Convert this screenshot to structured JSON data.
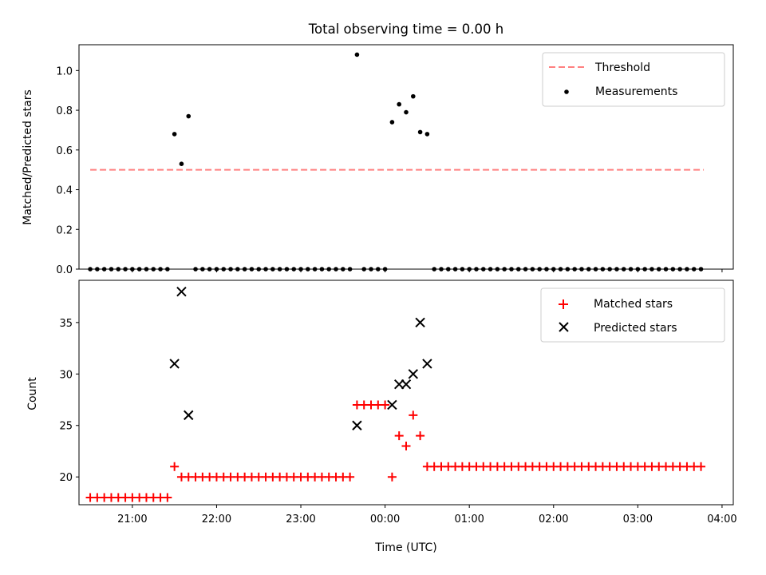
{
  "chart_data": [
    {
      "type": "scatter",
      "title": "Total observing time = 0.00 h",
      "xlabel": "",
      "ylabel": "Matched/Predicted stars",
      "xrange": [
        "20:22",
        "04:08"
      ],
      "ylim": [
        0,
        1.13
      ],
      "yticks": [
        0.0,
        0.2,
        0.4,
        0.6,
        0.8,
        1.0
      ],
      "xticks": [
        "21:00",
        "22:00",
        "23:00",
        "00:00",
        "01:00",
        "02:00",
        "03:00",
        "04:00"
      ],
      "grid": false,
      "legend_position": "top-right",
      "series": [
        {
          "name": "Threshold",
          "kind": "dashed-line",
          "color": "#ff8080",
          "points": [
            [
              "20:30",
              0.5
            ],
            [
              "03:47",
              0.5
            ]
          ]
        },
        {
          "name": "Measurements",
          "kind": "dot",
          "color": "#000000",
          "points": [
            [
              "20:30",
              0
            ],
            [
              "20:35",
              0
            ],
            [
              "20:40",
              0
            ],
            [
              "20:45",
              0
            ],
            [
              "20:50",
              0
            ],
            [
              "20:55",
              0
            ],
            [
              "21:00",
              0
            ],
            [
              "21:05",
              0
            ],
            [
              "21:10",
              0
            ],
            [
              "21:15",
              0
            ],
            [
              "21:20",
              0
            ],
            [
              "21:25",
              0
            ],
            [
              "21:30",
              0.68
            ],
            [
              "21:35",
              0.53
            ],
            [
              "21:40",
              0.77
            ],
            [
              "21:45",
              0
            ],
            [
              "21:50",
              0
            ],
            [
              "21:55",
              0
            ],
            [
              "22:00",
              0
            ],
            [
              "22:05",
              0
            ],
            [
              "22:10",
              0
            ],
            [
              "22:15",
              0
            ],
            [
              "22:20",
              0
            ],
            [
              "22:25",
              0
            ],
            [
              "22:30",
              0
            ],
            [
              "22:35",
              0
            ],
            [
              "22:40",
              0
            ],
            [
              "22:45",
              0
            ],
            [
              "22:50",
              0
            ],
            [
              "22:55",
              0
            ],
            [
              "23:00",
              0
            ],
            [
              "23:05",
              0
            ],
            [
              "23:10",
              0
            ],
            [
              "23:15",
              0
            ],
            [
              "23:20",
              0
            ],
            [
              "23:25",
              0
            ],
            [
              "23:30",
              0
            ],
            [
              "23:35",
              0
            ],
            [
              "23:40",
              1.08
            ],
            [
              "23:45",
              0
            ],
            [
              "23:50",
              0
            ],
            [
              "23:55",
              0
            ],
            [
              "00:00",
              0
            ],
            [
              "00:05",
              0.74
            ],
            [
              "00:10",
              0.83
            ],
            [
              "00:15",
              0.79
            ],
            [
              "00:20",
              0.87
            ],
            [
              "00:25",
              0.69
            ],
            [
              "00:30",
              0.68
            ],
            [
              "00:35",
              0
            ],
            [
              "00:40",
              0
            ],
            [
              "00:45",
              0
            ],
            [
              "00:50",
              0
            ],
            [
              "00:55",
              0
            ],
            [
              "01:00",
              0
            ],
            [
              "01:05",
              0
            ],
            [
              "01:10",
              0
            ],
            [
              "01:15",
              0
            ],
            [
              "01:20",
              0
            ],
            [
              "01:25",
              0
            ],
            [
              "01:30",
              0
            ],
            [
              "01:35",
              0
            ],
            [
              "01:40",
              0
            ],
            [
              "01:45",
              0
            ],
            [
              "01:50",
              0
            ],
            [
              "01:55",
              0
            ],
            [
              "02:00",
              0
            ],
            [
              "02:05",
              0
            ],
            [
              "02:10",
              0
            ],
            [
              "02:15",
              0
            ],
            [
              "02:20",
              0
            ],
            [
              "02:25",
              0
            ],
            [
              "02:30",
              0
            ],
            [
              "02:35",
              0
            ],
            [
              "02:40",
              0
            ],
            [
              "02:45",
              0
            ],
            [
              "02:50",
              0
            ],
            [
              "02:55",
              0
            ],
            [
              "03:00",
              0
            ],
            [
              "03:05",
              0
            ],
            [
              "03:10",
              0
            ],
            [
              "03:15",
              0
            ],
            [
              "03:20",
              0
            ],
            [
              "03:25",
              0
            ],
            [
              "03:30",
              0
            ],
            [
              "03:35",
              0
            ],
            [
              "03:40",
              0
            ],
            [
              "03:45",
              0
            ]
          ]
        }
      ]
    },
    {
      "type": "scatter",
      "title": "",
      "xlabel": "Time (UTC)",
      "ylabel": "Count",
      "xrange": [
        "20:22",
        "04:08"
      ],
      "ylim": [
        17.3,
        39.1
      ],
      "yticks": [
        20,
        25,
        30,
        35
      ],
      "xticks": [
        "21:00",
        "22:00",
        "23:00",
        "00:00",
        "01:00",
        "02:00",
        "03:00",
        "04:00"
      ],
      "grid": false,
      "legend_position": "top-right",
      "series": [
        {
          "name": "Matched stars",
          "kind": "plus",
          "color": "#ff0000",
          "points": [
            [
              "20:30",
              18
            ],
            [
              "20:35",
              18
            ],
            [
              "20:40",
              18
            ],
            [
              "20:45",
              18
            ],
            [
              "20:50",
              18
            ],
            [
              "20:55",
              18
            ],
            [
              "21:00",
              18
            ],
            [
              "21:05",
              18
            ],
            [
              "21:10",
              18
            ],
            [
              "21:15",
              18
            ],
            [
              "21:20",
              18
            ],
            [
              "21:25",
              18
            ],
            [
              "21:30",
              21
            ],
            [
              "21:35",
              20
            ],
            [
              "21:40",
              20
            ],
            [
              "21:45",
              20
            ],
            [
              "21:50",
              20
            ],
            [
              "21:55",
              20
            ],
            [
              "22:00",
              20
            ],
            [
              "22:05",
              20
            ],
            [
              "22:10",
              20
            ],
            [
              "22:15",
              20
            ],
            [
              "22:20",
              20
            ],
            [
              "22:25",
              20
            ],
            [
              "22:30",
              20
            ],
            [
              "22:35",
              20
            ],
            [
              "22:40",
              20
            ],
            [
              "22:45",
              20
            ],
            [
              "22:50",
              20
            ],
            [
              "22:55",
              20
            ],
            [
              "23:00",
              20
            ],
            [
              "23:05",
              20
            ],
            [
              "23:10",
              20
            ],
            [
              "23:15",
              20
            ],
            [
              "23:20",
              20
            ],
            [
              "23:25",
              20
            ],
            [
              "23:30",
              20
            ],
            [
              "23:35",
              20
            ],
            [
              "23:40",
              27
            ],
            [
              "23:45",
              27
            ],
            [
              "23:50",
              27
            ],
            [
              "23:55",
              27
            ],
            [
              "00:00",
              27
            ],
            [
              "00:05",
              20
            ],
            [
              "00:10",
              24
            ],
            [
              "00:15",
              23
            ],
            [
              "00:20",
              26
            ],
            [
              "00:25",
              24
            ],
            [
              "00:30",
              21
            ],
            [
              "00:35",
              21
            ],
            [
              "00:40",
              21
            ],
            [
              "00:45",
              21
            ],
            [
              "00:50",
              21
            ],
            [
              "00:55",
              21
            ],
            [
              "01:00",
              21
            ],
            [
              "01:05",
              21
            ],
            [
              "01:10",
              21
            ],
            [
              "01:15",
              21
            ],
            [
              "01:20",
              21
            ],
            [
              "01:25",
              21
            ],
            [
              "01:30",
              21
            ],
            [
              "01:35",
              21
            ],
            [
              "01:40",
              21
            ],
            [
              "01:45",
              21
            ],
            [
              "01:50",
              21
            ],
            [
              "01:55",
              21
            ],
            [
              "02:00",
              21
            ],
            [
              "02:05",
              21
            ],
            [
              "02:10",
              21
            ],
            [
              "02:15",
              21
            ],
            [
              "02:20",
              21
            ],
            [
              "02:25",
              21
            ],
            [
              "02:30",
              21
            ],
            [
              "02:35",
              21
            ],
            [
              "02:40",
              21
            ],
            [
              "02:45",
              21
            ],
            [
              "02:50",
              21
            ],
            [
              "02:55",
              21
            ],
            [
              "03:00",
              21
            ],
            [
              "03:05",
              21
            ],
            [
              "03:10",
              21
            ],
            [
              "03:15",
              21
            ],
            [
              "03:20",
              21
            ],
            [
              "03:25",
              21
            ],
            [
              "03:30",
              21
            ],
            [
              "03:35",
              21
            ],
            [
              "03:40",
              21
            ],
            [
              "03:45",
              21
            ]
          ]
        },
        {
          "name": "Predicted stars",
          "kind": "x",
          "color": "#000000",
          "points": [
            [
              "21:30",
              31
            ],
            [
              "21:35",
              38
            ],
            [
              "21:40",
              26
            ],
            [
              "23:40",
              25
            ],
            [
              "00:05",
              27
            ],
            [
              "00:10",
              29
            ],
            [
              "00:15",
              29
            ],
            [
              "00:20",
              30
            ],
            [
              "00:25",
              35
            ],
            [
              "00:30",
              31
            ]
          ]
        }
      ]
    }
  ]
}
